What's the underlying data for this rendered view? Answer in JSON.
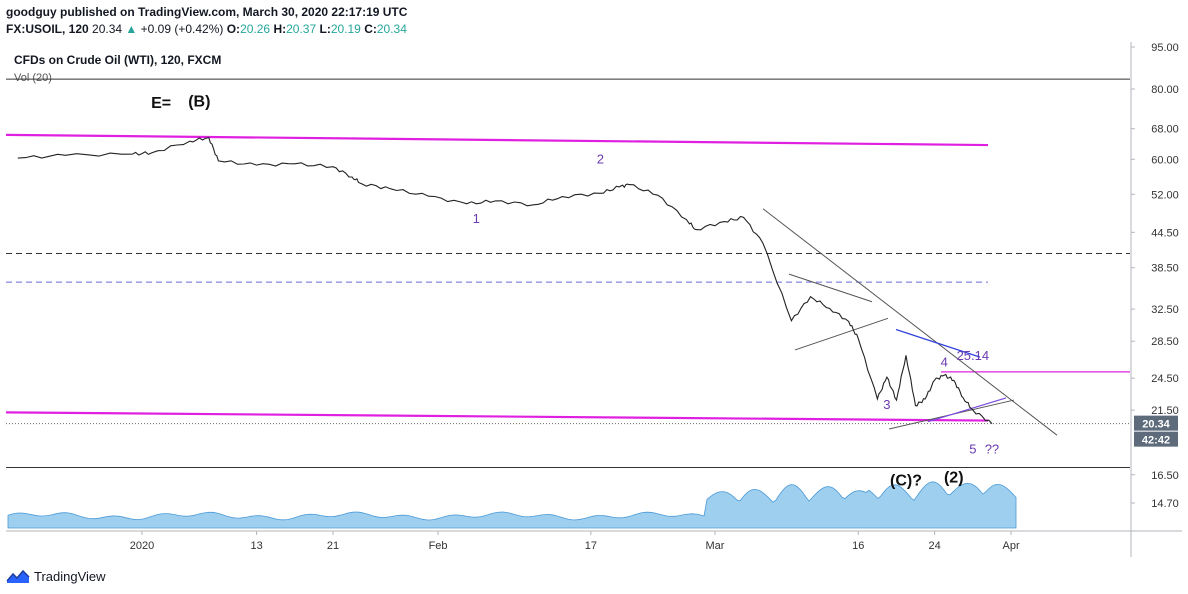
{
  "header": {
    "published_line": "goodguy published on TradingView.com, March 30, 2020 22:17:19 UTC",
    "symbol": "FX:USOIL, 120",
    "last": "20.34",
    "change_arrow": "▲",
    "change": "+0.09 (+0.42%)",
    "o_label": "O:",
    "o": "20.26",
    "h_label": "H:",
    "h": "20.37",
    "l_label": "L:",
    "l": "20.19",
    "c_label": "C:",
    "c": "20.34"
  },
  "legend": {
    "title": "CFDs on Crude Oil (WTI), 120, FXCM",
    "volume": "Vol (20)"
  },
  "footer": {
    "brand": "TradingView"
  },
  "colors": {
    "magenta": "#e020e0",
    "wave_label": "#6a3ab2",
    "trend": "#555555",
    "blue_line": "#3344dd",
    "volume_fill": "#7fbfe8",
    "price_tag": "#5d6b7a"
  },
  "chart_data": {
    "type": "line",
    "scale": "log",
    "y_ticks": [
      "95.00",
      "80.00",
      "68.00",
      "60.00",
      "52.00",
      "44.50",
      "38.50",
      "32.50",
      "28.50",
      "24.50",
      "21.50",
      "16.50",
      "14.70"
    ],
    "x_ticks": [
      "2020",
      "13",
      "21",
      "Feb",
      "17",
      "Mar",
      "16",
      "24",
      "Apr"
    ],
    "price_series": {
      "name": "",
      "points": [
        [
          "Dec 19",
          60.3
        ],
        [
          "Dec 24",
          61.0
        ],
        [
          "Dec 31",
          61.3
        ],
        [
          "Jan 2",
          61.6
        ],
        [
          "Jan 6",
          64.6
        ],
        [
          "Jan 8",
          65.6
        ],
        [
          "Jan 9",
          59.6
        ],
        [
          "Jan 13",
          58.6
        ],
        [
          "Jan 17",
          58.9
        ],
        [
          "Jan 21",
          58.2
        ],
        [
          "Jan 23",
          55.8
        ],
        [
          "Jan 24",
          54.3
        ],
        [
          "Jan 27",
          53.2
        ],
        [
          "Jan 31",
          51.6
        ],
        [
          "Feb 4",
          50.0
        ],
        [
          "Feb 7",
          50.6
        ],
        [
          "Feb 11",
          49.8
        ],
        [
          "Feb 14",
          51.5
        ],
        [
          "Feb 18",
          52.2
        ],
        [
          "Feb 20",
          53.6
        ],
        [
          "Feb 21",
          54.1
        ],
        [
          "Feb 24",
          51.8
        ],
        [
          "Feb 27",
          46.9
        ],
        [
          "Feb 28",
          45.0
        ],
        [
          "Mar 2",
          46.5
        ],
        [
          "Mar 4",
          47.3
        ],
        [
          "Mar 6",
          42.6
        ],
        [
          "Mar 9",
          31.0
        ],
        [
          "Mar 11",
          34.2
        ],
        [
          "Mar 13",
          32.6
        ],
        [
          "Mar 15",
          30.9
        ],
        [
          "Mar 16",
          28.8
        ],
        [
          "Mar 18",
          22.5
        ],
        [
          "Mar 19",
          24.6
        ],
        [
          "Mar 20",
          22.4
        ],
        [
          "Mar 21",
          26.9
        ],
        [
          "Mar 22",
          21.9
        ],
        [
          "Mar 23",
          22.5
        ],
        [
          "Mar 24",
          24.3
        ],
        [
          "Mar 25",
          24.8
        ],
        [
          "Mar 26",
          24.3
        ],
        [
          "Mar 27",
          22.6
        ],
        [
          "Mar 28",
          21.5
        ],
        [
          "Mar 30",
          20.34
        ]
      ]
    },
    "volume_series": {
      "name": "Vol (20)",
      "values": []
    },
    "horizontal_levels": [
      {
        "price": 83.3,
        "style": "solid"
      },
      {
        "price": 40.8,
        "style": "dashed"
      },
      {
        "price": 36.3,
        "style": "dashed"
      },
      {
        "price": 25.14,
        "label": "25.14"
      },
      {
        "price": 20.34,
        "style": "dotted"
      },
      {
        "price": 17.0,
        "style": "solid"
      }
    ],
    "annotations": [
      {
        "text": "E=",
        "x": "Jan 3",
        "y": 74.0
      },
      {
        "text": "(B)",
        "x": "Jan 7",
        "y": 74.5
      },
      {
        "text": "1",
        "x": "Feb 5",
        "y": 46.2
      },
      {
        "text": "2",
        "x": "Feb 18",
        "y": 59.0
      },
      {
        "text": "3",
        "x": "Mar 19",
        "y": 21.6
      },
      {
        "text": "4",
        "x": "Mar 25",
        "y": 25.7
      },
      {
        "text": "25.14",
        "x": "Mar 28",
        "y": 26.4
      },
      {
        "text": "5",
        "x": "Mar 28",
        "y": 18.0
      },
      {
        "text": "??",
        "x": "Mar 30",
        "y": 18.0
      },
      {
        "text": "(C)?",
        "x": "Mar 21",
        "y": 15.8
      },
      {
        "text": "(2)",
        "x": "Mar 26",
        "y": 16.0
      }
    ],
    "price_tag": "20.34",
    "countdown_tag": "42:42",
    "legend_position": "top-left",
    "grid": false
  }
}
